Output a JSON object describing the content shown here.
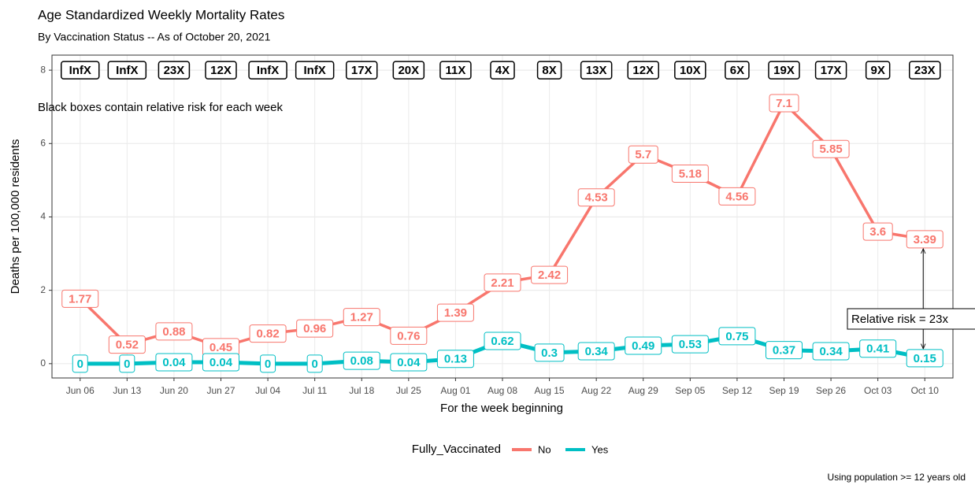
{
  "chart_data": {
    "type": "line",
    "title": "Age Standardized Weekly Mortality Rates",
    "subtitle": "By Vaccination Status -- As of October 20, 2021",
    "x_label": "For the week beginning",
    "y_label": "Deaths per 100,000 residents",
    "caption": "Using population >= 12 years old",
    "legend_title": "Fully_Vaccinated",
    "categories": [
      "Jun 06",
      "Jun 13",
      "Jun 20",
      "Jun 27",
      "Jul 04",
      "Jul 11",
      "Jul 18",
      "Jul 25",
      "Aug 01",
      "Aug 08",
      "Aug 15",
      "Aug 22",
      "Aug 29",
      "Sep 05",
      "Sep 12",
      "Sep 19",
      "Sep 26",
      "Oct 03",
      "Oct 10"
    ],
    "series": [
      {
        "name": "No",
        "color": "#F8766D",
        "values": [
          1.77,
          0.52,
          0.88,
          0.45,
          0.82,
          0.96,
          1.27,
          0.76,
          1.39,
          2.21,
          2.42,
          4.53,
          5.7,
          5.18,
          4.56,
          7.1,
          5.85,
          3.6,
          3.39
        ]
      },
      {
        "name": "Yes",
        "color": "#00BFC4",
        "values": [
          0,
          0,
          0.04,
          0.04,
          0,
          0,
          0.08,
          0.04,
          0.13,
          0.62,
          0.3,
          0.34,
          0.49,
          0.53,
          0.75,
          0.37,
          0.34,
          0.41,
          0.15
        ]
      }
    ],
    "risk_labels": [
      "InfX",
      "InfX",
      "23X",
      "12X",
      "InfX",
      "InfX",
      "17X",
      "20X",
      "11X",
      "4X",
      "8X",
      "13X",
      "12X",
      "10X",
      "6X",
      "19X",
      "17X",
      "9X",
      "23X"
    ],
    "annotations": [
      "Black boxes contain relative risk for each week",
      "Relative risk = 23x"
    ],
    "ylim": [
      -0.39,
      8.41
    ],
    "yticks": [
      0,
      2,
      4,
      6,
      8
    ],
    "grid": true,
    "legend_position": "bottom"
  }
}
